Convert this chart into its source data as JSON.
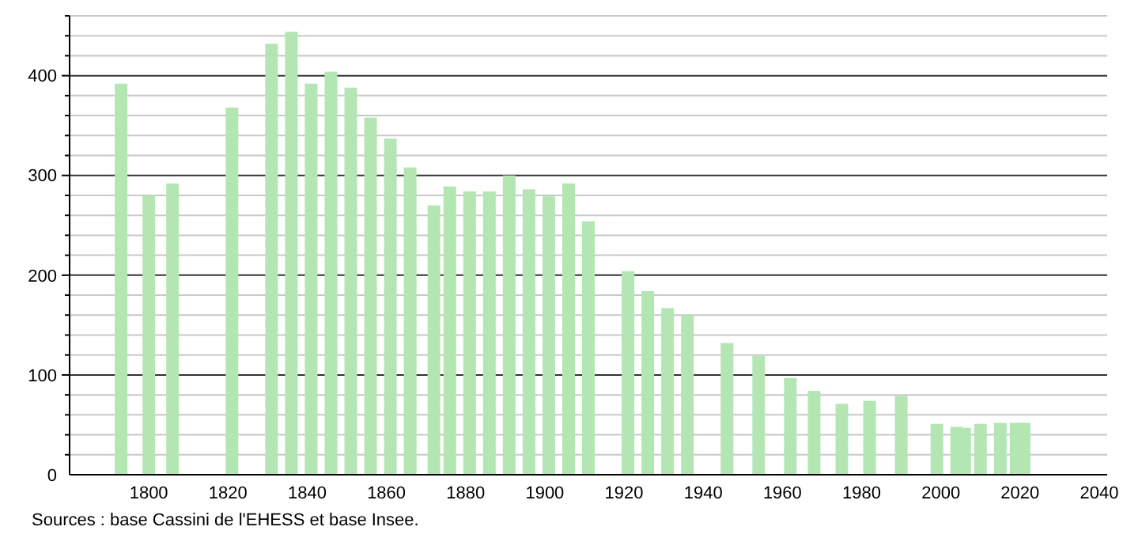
{
  "chart_data": {
    "type": "bar",
    "color": "#b3e6b3",
    "x": [
      1793,
      1800,
      1806,
      1821,
      1831,
      1836,
      1841,
      1846,
      1851,
      1856,
      1861,
      1866,
      1872,
      1876,
      1881,
      1886,
      1891,
      1896,
      1901,
      1906,
      1911,
      1921,
      1926,
      1931,
      1936,
      1946,
      1954,
      1962,
      1968,
      1975,
      1982,
      1990,
      1999,
      2004,
      2006,
      2010,
      2015,
      2019,
      2021
    ],
    "values": [
      392,
      280,
      292,
      368,
      432,
      444,
      392,
      404,
      388,
      358,
      337,
      308,
      270,
      289,
      284,
      284,
      300,
      286,
      279,
      292,
      254,
      204,
      184,
      167,
      160,
      132,
      119,
      97,
      84,
      71,
      74,
      79,
      51,
      48,
      47,
      51,
      52,
      52,
      52
    ],
    "xlim": [
      1780,
      2042
    ],
    "xticks": [
      1800,
      1820,
      1840,
      1860,
      1880,
      1900,
      1920,
      1940,
      1960,
      1980,
      2000,
      2020,
      2040
    ],
    "ylim": [
      0,
      460
    ],
    "yticks": [
      0,
      {
        "value": 20,
        "label": null
      },
      {
        "value": 40,
        "label": null
      },
      {
        "value": 60,
        "label": null
      },
      {
        "value": 80,
        "label": null
      },
      100,
      {
        "value": 120,
        "label": null
      },
      {
        "value": 140,
        "label": null
      },
      {
        "value": 160,
        "label": null
      },
      {
        "value": 180,
        "label": null
      },
      200,
      {
        "value": 220,
        "label": null
      },
      {
        "value": 240,
        "label": null
      },
      {
        "value": 260,
        "label": null
      },
      {
        "value": 280,
        "label": null
      },
      300,
      {
        "value": 320,
        "label": null
      },
      {
        "value": 340,
        "label": null
      },
      {
        "value": 360,
        "label": null
      },
      {
        "value": 380,
        "label": null
      },
      400,
      {
        "value": 420,
        "label": null
      },
      {
        "value": 440,
        "label": null
      },
      {
        "value": 460,
        "label": null
      }
    ],
    "grid": "y",
    "annotations": [
      "Sources : base Cassini de l'EHESS et base Insee."
    ]
  }
}
